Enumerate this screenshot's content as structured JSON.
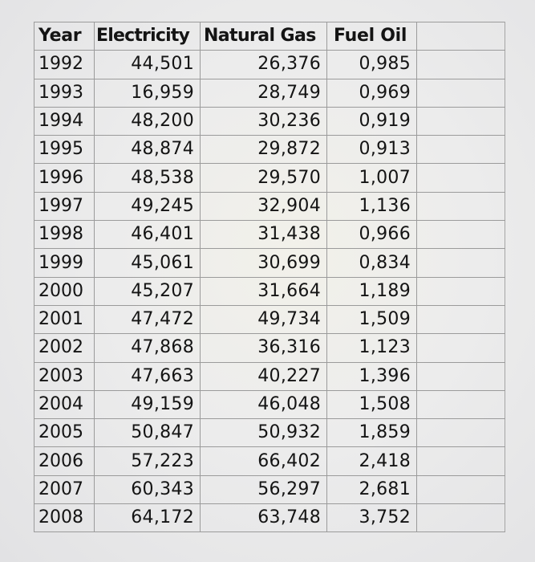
{
  "table": {
    "headers": [
      "Year",
      "Electricity",
      "Natural Gas",
      "Fuel Oil"
    ],
    "rows": [
      {
        "year": "1992",
        "electricity": "44,501",
        "natural_gas": "26,376",
        "fuel_oil": "0,985"
      },
      {
        "year": "1993",
        "electricity": "16,959",
        "natural_gas": "28,749",
        "fuel_oil": "0,969"
      },
      {
        "year": "1994",
        "electricity": "48,200",
        "natural_gas": "30,236",
        "fuel_oil": "0,919"
      },
      {
        "year": "1995",
        "electricity": "48,874",
        "natural_gas": "29,872",
        "fuel_oil": "0,913"
      },
      {
        "year": "1996",
        "electricity": "48,538",
        "natural_gas": "29,570",
        "fuel_oil": "1,007"
      },
      {
        "year": "1997",
        "electricity": "49,245",
        "natural_gas": "32,904",
        "fuel_oil": "1,136"
      },
      {
        "year": "1998",
        "electricity": "46,401",
        "natural_gas": "31,438",
        "fuel_oil": "0,966"
      },
      {
        "year": "1999",
        "electricity": "45,061",
        "natural_gas": "30,699",
        "fuel_oil": "0,834"
      },
      {
        "year": "2000",
        "electricity": "45,207",
        "natural_gas": "31,664",
        "fuel_oil": "1,189"
      },
      {
        "year": "2001",
        "electricity": "47,472",
        "natural_gas": "49,734",
        "fuel_oil": "1,509"
      },
      {
        "year": "2002",
        "electricity": "47,868",
        "natural_gas": "36,316",
        "fuel_oil": "1,123"
      },
      {
        "year": "2003",
        "electricity": "47,663",
        "natural_gas": "40,227",
        "fuel_oil": "1,396"
      },
      {
        "year": "2004",
        "electricity": "49,159",
        "natural_gas": "46,048",
        "fuel_oil": "1,508"
      },
      {
        "year": "2005",
        "electricity": "50,847",
        "natural_gas": "50,932",
        "fuel_oil": "1,859"
      },
      {
        "year": "2006",
        "electricity": "57,223",
        "natural_gas": "66,402",
        "fuel_oil": "2,418"
      },
      {
        "year": "2007",
        "electricity": "60,343",
        "natural_gas": "56,297",
        "fuel_oil": "2,681"
      },
      {
        "year": "2008",
        "electricity": "64,172",
        "natural_gas": "63,748",
        "fuel_oil": "3,752"
      }
    ]
  }
}
